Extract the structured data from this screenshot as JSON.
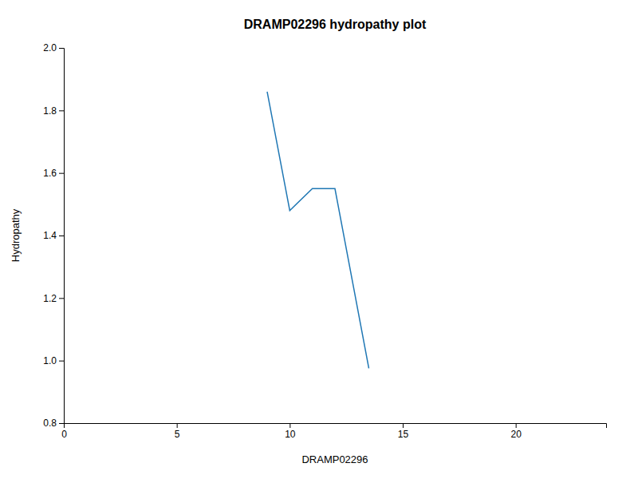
{
  "chart_data": {
    "type": "line",
    "title": "DRAMP02296 hydropathy plot",
    "xlabel": "DRAMP02296",
    "ylabel": "Hydropathy",
    "x": [
      9.0,
      10.0,
      11.0,
      12.0,
      13.5
    ],
    "values": [
      1.86,
      1.48,
      1.55,
      1.55,
      0.975
    ],
    "xlim": [
      0,
      24
    ],
    "xticks": [
      0,
      5,
      10,
      15,
      20
    ],
    "ylim": [
      0.8,
      2.0
    ],
    "yticks": [
      0.8,
      {
        "value": 1.0,
        "label": "1.0"
      },
      1.2,
      1.4,
      1.6,
      1.8,
      {
        "value": 2.0,
        "label": "2.0"
      }
    ],
    "grid": false
  }
}
